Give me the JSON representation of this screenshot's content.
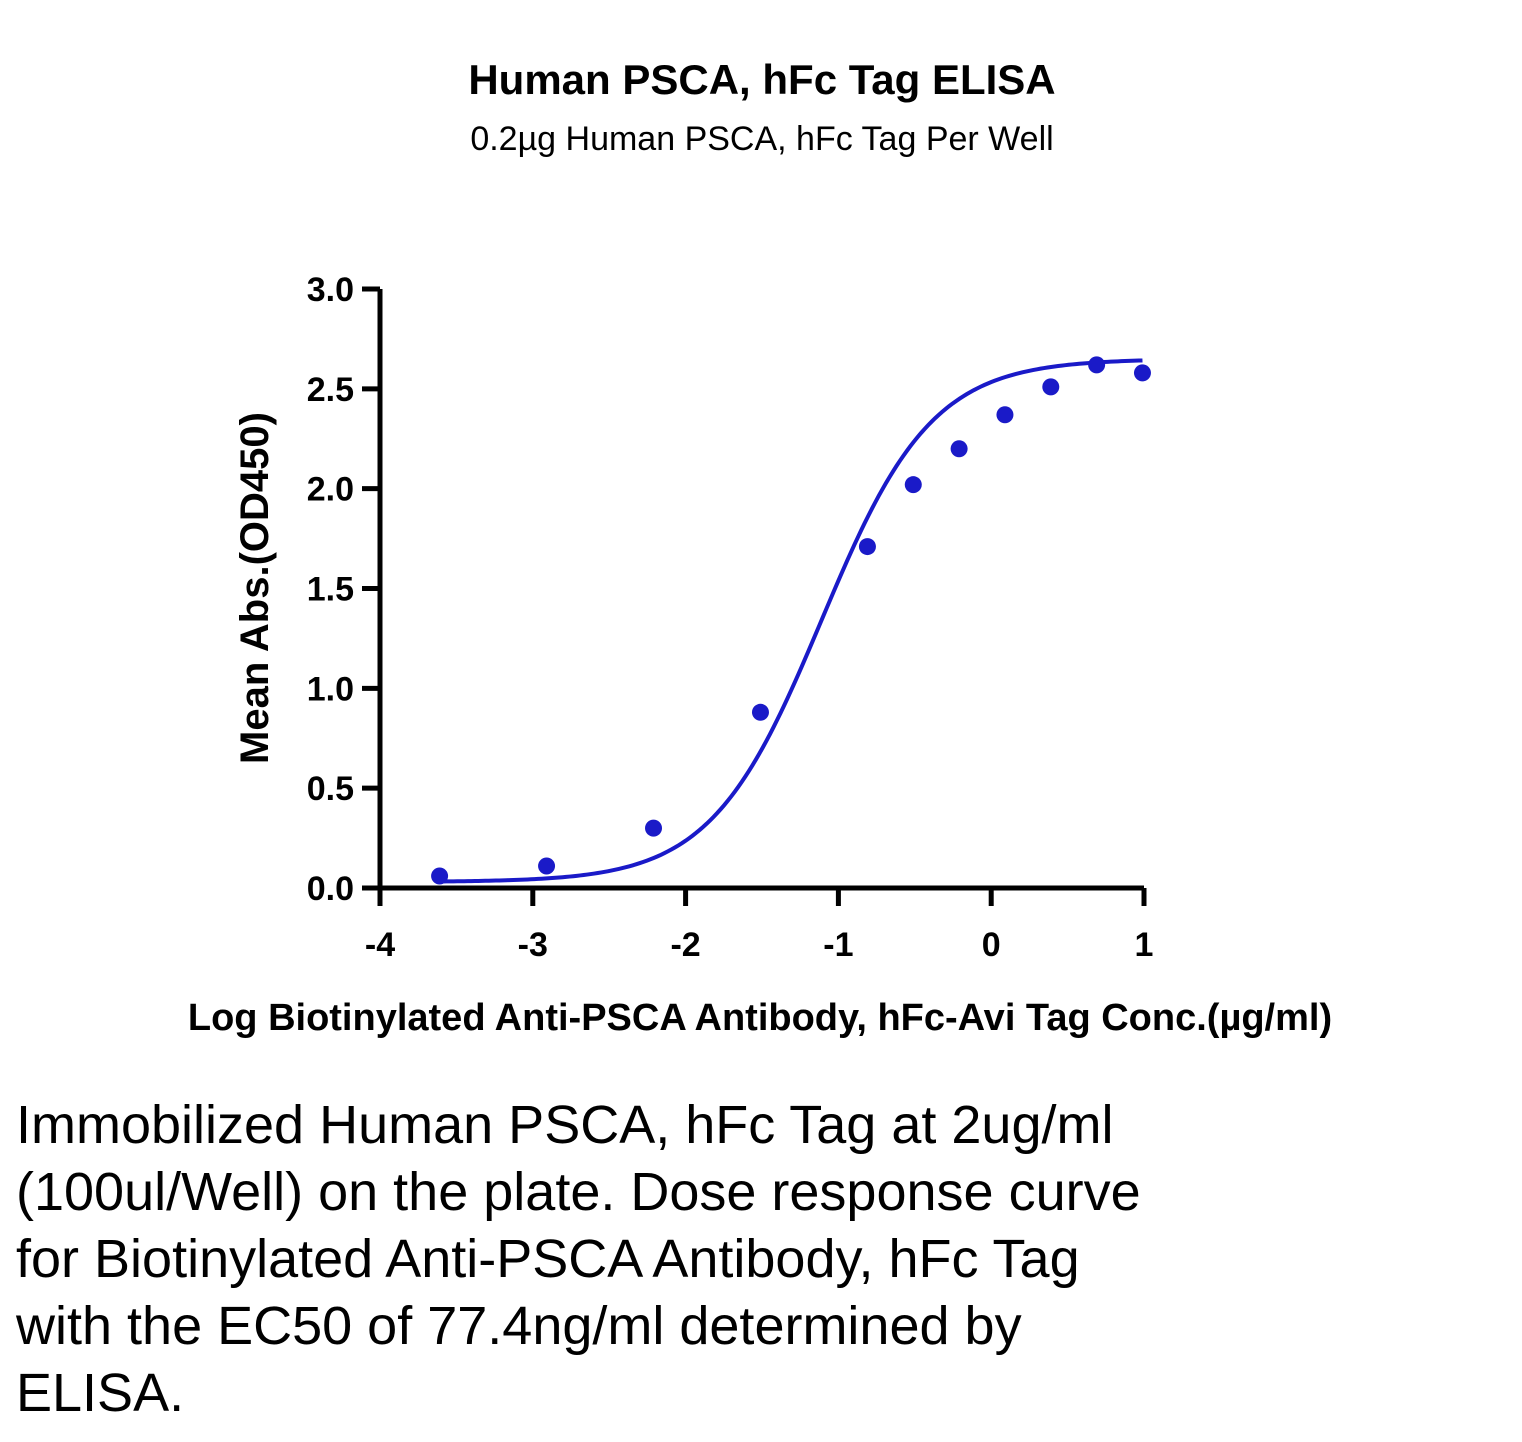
{
  "chart_data": {
    "type": "scatter",
    "title": "Human PSCA, hFc Tag ELISA",
    "subtitle": "0.2µg Human PSCA, hFc Tag Per Well",
    "xlabel": "Log Biotinylated Anti-PSCA Antibody, hFc-Avi Tag Conc.(µg/ml)",
    "ylabel": "Mean Abs.(OD450)",
    "xlim": [
      -4,
      1
    ],
    "ylim": [
      0,
      3
    ],
    "x_ticks": [
      "-4",
      "-3",
      "-2",
      "-1",
      "0",
      "1"
    ],
    "y_ticks": [
      "0.0",
      "0.5",
      "1.0",
      "1.5",
      "2.0",
      "2.5",
      "3.0"
    ],
    "grid": false,
    "series": [
      {
        "x": [
          -3.61,
          -2.91,
          -2.21,
          -1.51,
          -0.81,
          -0.51,
          -0.21,
          0.09,
          0.39,
          0.69,
          0.99
        ],
        "y": [
          0.06,
          0.11,
          0.3,
          0.88,
          1.71,
          2.02,
          2.2,
          2.37,
          2.51,
          2.62,
          2.58
        ],
        "fit": "four-parameter logistic curve",
        "color": "#1a1ac8"
      }
    ]
  },
  "caption": "Immobilized Human PSCA, hFc Tag at 2ug/ml (100ul/Well) on the plate. Dose response curve for Biotinylated Anti-PSCA Antibody, hFc Tag with the EC50 of 77.4ng/ml determined by ELISA."
}
